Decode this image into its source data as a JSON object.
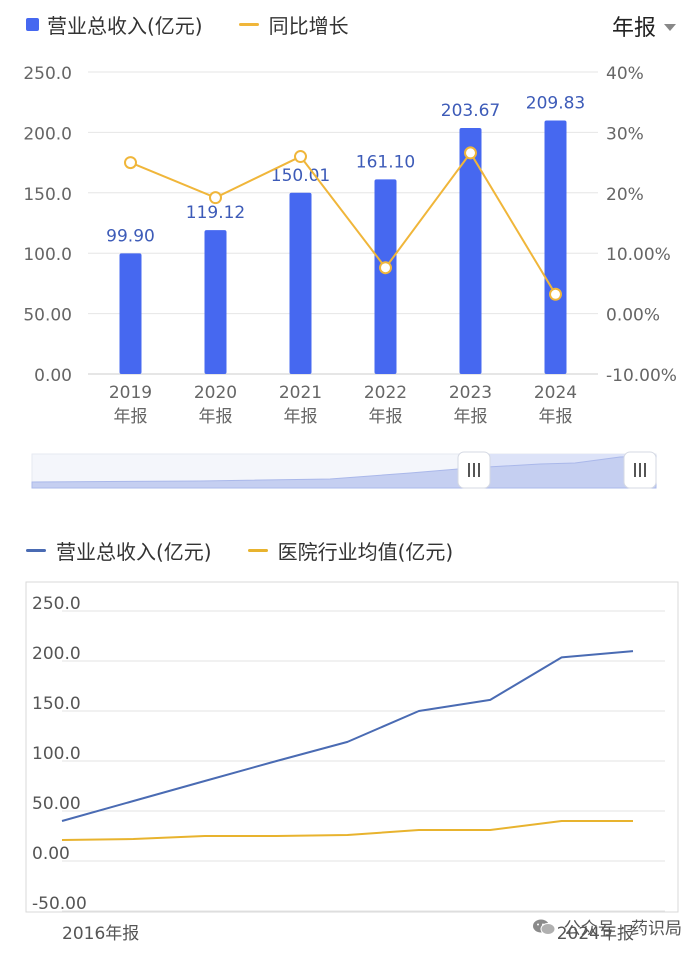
{
  "top_chart": {
    "period_selector": "年报",
    "legend": [
      {
        "label": "营业总收入(亿元)",
        "color": "#4668f0",
        "kind": "bar"
      },
      {
        "label": "同比增长",
        "color": "#f0b63a",
        "kind": "line"
      }
    ]
  },
  "bottom_chart": {
    "legend": [
      {
        "label": "营业总收入(亿元)",
        "color": "#4a6bb3"
      },
      {
        "label": "医院行业均值(亿元)",
        "color": "#e8b32e"
      }
    ]
  },
  "watermark": {
    "text": "公众号 · 药识局"
  },
  "chart_data": [
    {
      "type": "bar",
      "categories": [
        "2019\n年报",
        "2020\n年报",
        "2021\n年报",
        "2022\n年报",
        "2023\n年报",
        "2024\n年报"
      ],
      "series": [
        {
          "name": "营业总收入(亿元)",
          "axis": "left",
          "type": "bar",
          "values": [
            99.9,
            119.12,
            150.01,
            161.1,
            203.67,
            209.83
          ],
          "labels": [
            "99.90",
            "119.12",
            "150.01",
            "161.10",
            "203.67",
            "209.83"
          ]
        },
        {
          "name": "同比增长",
          "axis": "right",
          "type": "line",
          "values": [
            25.0,
            19.2,
            26.0,
            7.6,
            26.6,
            3.2
          ]
        }
      ],
      "y_left": {
        "ticks": [
          "250.0",
          "200.0",
          "150.0",
          "100.0",
          "50.00",
          "0.00"
        ],
        "ylim": [
          0,
          250
        ]
      },
      "y_right": {
        "ticks": [
          "40%",
          "30%",
          "20%",
          "10.00%",
          "0.00%",
          "-10.00%"
        ],
        "ylim": [
          -10,
          40
        ]
      },
      "grid": true,
      "legend_position": "top-left"
    },
    {
      "type": "line",
      "x_labels": [
        "2016年报",
        "2024年报"
      ],
      "x": [
        2016,
        2017,
        2018,
        2019,
        2020,
        2021,
        2022,
        2023,
        2024
      ],
      "series": [
        {
          "name": "营业总收入(亿元)",
          "values": [
            40,
            60,
            80,
            99.9,
            119.12,
            150.01,
            161.1,
            203.67,
            209.83
          ]
        },
        {
          "name": "医院行业均值(亿元)",
          "values": [
            21,
            22,
            25,
            25,
            26,
            31,
            31,
            40,
            40
          ]
        }
      ],
      "y": {
        "ticks": [
          "250.0",
          "200.0",
          "150.0",
          "100.0",
          "50.00",
          "0.00",
          "-50.00"
        ],
        "ylim": [
          -50,
          250
        ]
      },
      "grid": true,
      "legend_position": "top-left"
    }
  ]
}
